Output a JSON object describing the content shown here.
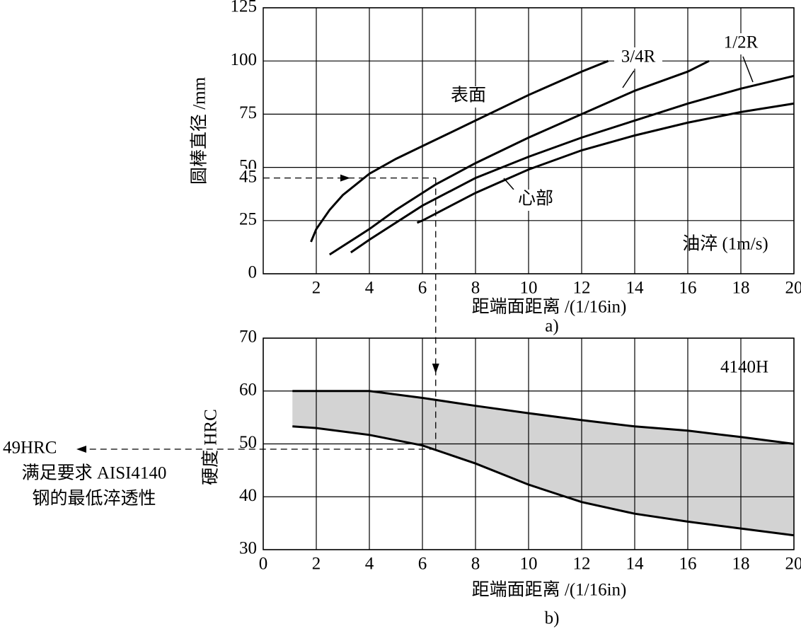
{
  "chart_data": [
    {
      "type": "line",
      "color": "#000000",
      "xlabel": "距端面距离 /(1/16in)",
      "ylabel": "圆棒直径 /mm",
      "caption": "a)",
      "annotations": [
        "油淬 (1m/s)"
      ],
      "xlim": [
        0,
        20
      ],
      "ylim": [
        0,
        125
      ],
      "xticks": [
        2,
        4,
        6,
        8,
        10,
        12,
        14,
        16,
        18,
        20
      ],
      "yticks": [
        0,
        25,
        50,
        75,
        100,
        125
      ],
      "grid": true,
      "guide": {
        "x": 6.5,
        "y": 45
      },
      "series": [
        {
          "name": "表面",
          "x": [
            1.8,
            2,
            2.5,
            3,
            4,
            5,
            6,
            7,
            8,
            10,
            12,
            13
          ],
          "values": [
            15,
            21,
            30,
            37,
            47,
            54,
            60,
            66,
            72,
            84,
            95,
            100
          ]
        },
        {
          "name": "3/4R",
          "x": [
            2.5,
            3,
            4,
            5,
            6,
            6.5,
            8,
            10,
            12,
            14,
            16,
            16.8
          ],
          "values": [
            9,
            13,
            21,
            30,
            38,
            42,
            52,
            64,
            75,
            86,
            95,
            100
          ]
        },
        {
          "name": "1/2R",
          "x": [
            3.3,
            4,
            6,
            8,
            10,
            12,
            14,
            16,
            18,
            20
          ],
          "values": [
            10,
            16,
            32,
            45,
            55,
            64,
            72,
            80,
            87,
            93
          ]
        },
        {
          "name": "心部",
          "x": [
            5.8,
            6,
            8,
            10,
            12,
            14,
            16,
            18,
            20
          ],
          "values": [
            24,
            25,
            38,
            49,
            58,
            65,
            71,
            76,
            80
          ]
        }
      ]
    },
    {
      "type": "band",
      "color": "#000000",
      "fill_color": "#d3d3d3",
      "xlabel": "距端面距离 /(1/16in)",
      "ylabel": "硬度 HRC",
      "caption": "b)",
      "annotations": [
        "4140H"
      ],
      "xlim": [
        0,
        20
      ],
      "ylim": [
        30,
        70
      ],
      "xticks": [
        0,
        2,
        4,
        6,
        8,
        10,
        12,
        14,
        16,
        18,
        20
      ],
      "yticks": [
        30,
        40,
        50,
        60,
        70
      ],
      "grid": true,
      "x": [
        1.1,
        2,
        4,
        6,
        8,
        10,
        12,
        14,
        16,
        18,
        20
      ],
      "upper": [
        60,
        60,
        60,
        58.7,
        57.2,
        55.8,
        54.5,
        53.3,
        52.5,
        51.3,
        50
      ],
      "lower": [
        53.3,
        53,
        51.7,
        49.7,
        46.3,
        42.3,
        39,
        36.8,
        35.3,
        34,
        32.7
      ],
      "guide": {
        "x": 6.5,
        "y": 49,
        "label": "49HRC",
        "note": [
          "满足要求 AISI4140",
          "钢的最低淬透性"
        ]
      }
    }
  ]
}
